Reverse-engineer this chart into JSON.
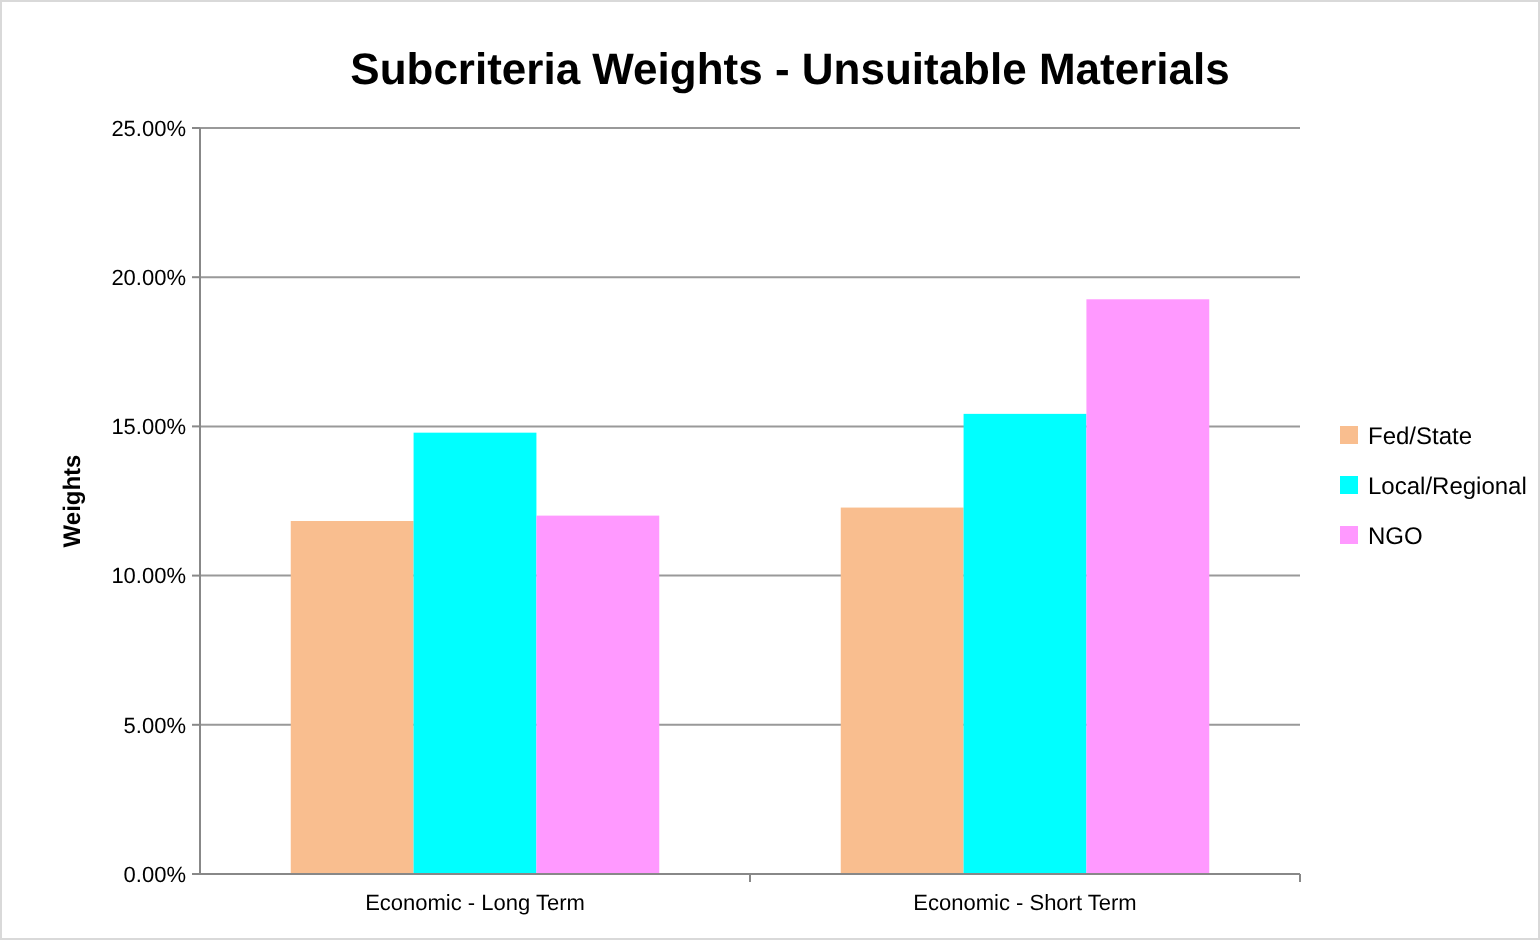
{
  "chart_data": {
    "type": "bar",
    "title": "Subcriteria Weights - Unsuitable Materials",
    "ylabel": "Weights",
    "categories": [
      "Economic - Long Term",
      "Economic - Short Term"
    ],
    "series": [
      {
        "name": "Fed/State",
        "color": "#f9be8f",
        "values": [
          0.1183,
          0.1228
        ]
      },
      {
        "name": "Local/Regional",
        "color": "#00ffff",
        "values": [
          0.1479,
          0.1542
        ]
      },
      {
        "name": "NGO",
        "color": "#ff99ff",
        "values": [
          0.1201,
          0.1926
        ]
      }
    ],
    "ylim": [
      0,
      0.25
    ],
    "yticks": [
      {
        "value": 0,
        "label": "0.00%"
      },
      {
        "value": 0.05,
        "label": "5.00%"
      },
      {
        "value": 0.1,
        "label": "10.00%"
      },
      {
        "value": 0.15,
        "label": "15.00%"
      },
      {
        "value": 0.2,
        "label": "20.00%"
      },
      {
        "value": 0.25,
        "label": "25.00%"
      }
    ],
    "grid": "y",
    "legend": "right"
  }
}
